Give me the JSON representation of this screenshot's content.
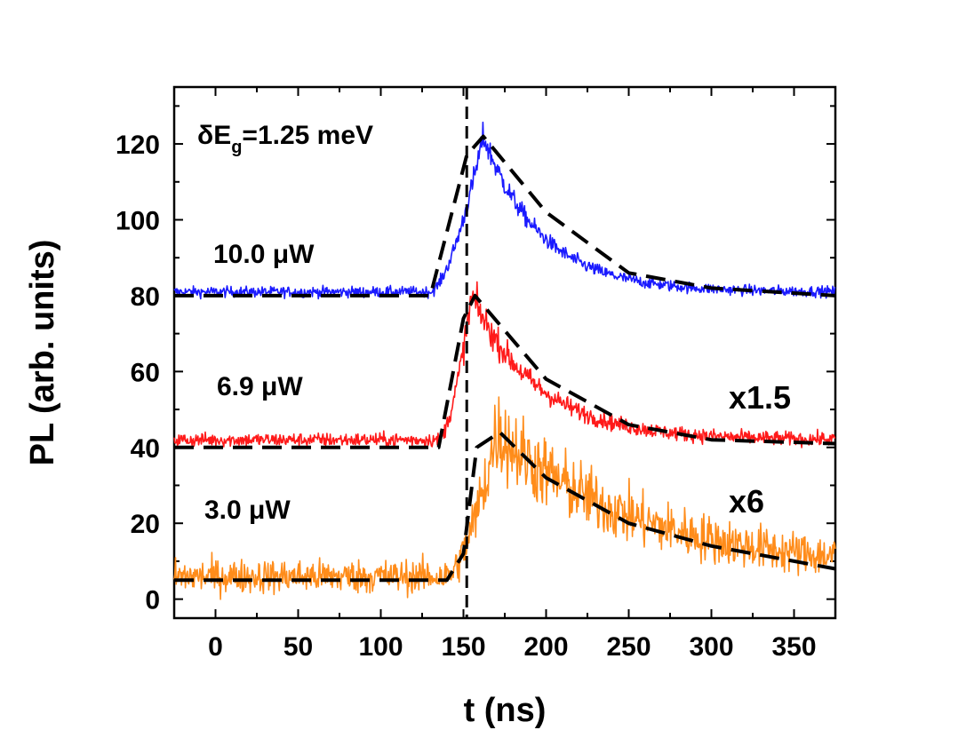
{
  "chart_data": {
    "type": "line",
    "xlabel": "t (ns)",
    "ylabel": "PL (arb. units)",
    "xlim": [
      -25,
      375
    ],
    "ylim": [
      -5,
      135
    ],
    "x_ticks": [
      0,
      50,
      100,
      150,
      200,
      250,
      300,
      350
    ],
    "y_ticks": [
      0,
      20,
      40,
      60,
      80,
      100,
      120
    ],
    "grid": false,
    "reference_line": {
      "x": 152,
      "style": "dashed"
    },
    "annotations": {
      "gap": {
        "prefix": "δE",
        "sub": "g",
        "suffix": "=1.25 meV"
      },
      "power_top": "10.0 μW",
      "power_mid": "6.9 μW",
      "power_low": "3.0 μW",
      "scale_mid": "x1.5",
      "scale_low": "x6"
    },
    "colors": {
      "top": "#1a1aff",
      "mid": "#ff1a1a",
      "low": "#ff8c1a",
      "fit": "#000000"
    },
    "series": [
      {
        "key": "top",
        "model": {
          "baseline": 81,
          "peak": 122,
          "onset": 130,
          "peak_t": 162,
          "tail_baseline": 81,
          "decay_tau": 35,
          "noise": 1.0
        },
        "fit_points": [
          [
            -25,
            80
          ],
          [
            130,
            80
          ],
          [
            152,
            117
          ],
          [
            162,
            122
          ],
          [
            200,
            102
          ],
          [
            250,
            86
          ],
          [
            300,
            82
          ],
          [
            375,
            80
          ]
        ]
      },
      {
        "key": "mid",
        "model": {
          "baseline": 42,
          "peak": 80,
          "onset": 135,
          "peak_t": 155,
          "tail_baseline": 42,
          "decay_tau": 40,
          "noise": 1.3
        },
        "fit_points": [
          [
            -25,
            40
          ],
          [
            135,
            40
          ],
          [
            150,
            74
          ],
          [
            157,
            80
          ],
          [
            200,
            58
          ],
          [
            250,
            46
          ],
          [
            300,
            42
          ],
          [
            375,
            41
          ]
        ]
      },
      {
        "key": "low",
        "model": {
          "baseline": 6,
          "peak": 44,
          "onset": 140,
          "peak_t": 170,
          "tail_baseline": 8,
          "decay_tau": 85,
          "noise": 3.2
        },
        "fit_points": [
          [
            -25,
            5
          ],
          [
            140,
            5
          ],
          [
            150,
            12
          ],
          [
            158,
            40
          ],
          [
            172,
            44
          ],
          [
            200,
            32
          ],
          [
            250,
            20
          ],
          [
            300,
            14
          ],
          [
            350,
            10
          ],
          [
            375,
            8
          ]
        ]
      }
    ]
  }
}
